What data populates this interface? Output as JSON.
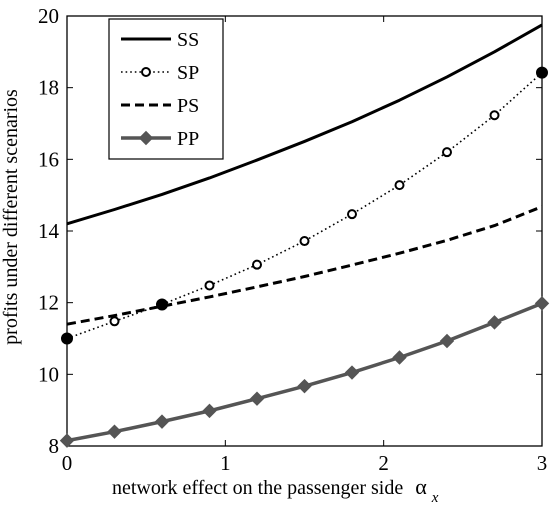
{
  "chart_data": {
    "type": "line",
    "title": "",
    "xlabel": "network effect on the passenger side",
    "xlabel_symbol": "α",
    "xlabel_subscript": "x",
    "ylabel": "profits under different scenarios",
    "xlim": [
      0,
      3
    ],
    "ylim": [
      8,
      20
    ],
    "xticks": [
      0,
      1,
      2,
      3
    ],
    "yticks": [
      8,
      10,
      12,
      14,
      16,
      18,
      20
    ],
    "grid": false,
    "legend_position": "top-left",
    "series": [
      {
        "name": "SS",
        "style": "solid",
        "color": "#000000",
        "marker": "none",
        "x": [
          0,
          0.3,
          0.6,
          0.9,
          1.2,
          1.5,
          1.8,
          2.1,
          2.4,
          2.7,
          3.0
        ],
        "y": [
          14.2,
          14.6,
          15.02,
          15.48,
          15.98,
          16.5,
          17.05,
          17.65,
          18.3,
          19.0,
          19.75
        ]
      },
      {
        "name": "SP",
        "style": "dotted",
        "color": "#000000",
        "marker": "open-circle",
        "x": [
          0,
          0.3,
          0.6,
          0.9,
          1.2,
          1.5,
          1.8,
          2.1,
          2.4,
          2.7,
          3.0
        ],
        "y": [
          11.0,
          11.48,
          11.95,
          12.48,
          13.06,
          13.72,
          14.47,
          15.28,
          16.2,
          17.23,
          18.42
        ]
      },
      {
        "name": "PS",
        "style": "dashed",
        "color": "#000000",
        "marker": "none",
        "x": [
          0,
          0.3,
          0.6,
          0.9,
          1.2,
          1.5,
          1.8,
          2.1,
          2.4,
          2.7,
          3.0
        ],
        "y": [
          11.4,
          11.64,
          11.9,
          12.16,
          12.44,
          12.73,
          13.05,
          13.38,
          13.74,
          14.15,
          14.68
        ]
      },
      {
        "name": "PP",
        "style": "solid",
        "color": "#555555",
        "marker": "diamond",
        "x": [
          0,
          0.3,
          0.6,
          0.9,
          1.2,
          1.5,
          1.8,
          2.1,
          2.4,
          2.7,
          3.0
        ],
        "y": [
          8.15,
          8.4,
          8.68,
          8.98,
          9.32,
          9.67,
          10.05,
          10.47,
          10.93,
          11.45,
          11.98
        ]
      }
    ]
  }
}
